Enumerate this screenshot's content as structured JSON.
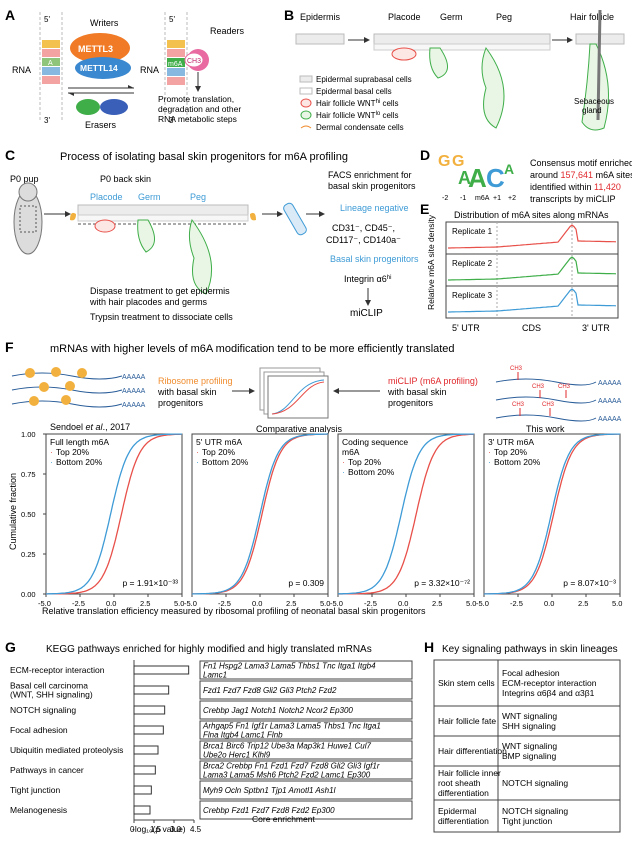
{
  "panels": {
    "A": {
      "letter": "A",
      "rna_left": "RNA",
      "rna_right": "RNA",
      "five_prime": "5'",
      "three_prime": "3'",
      "writers": "Writers",
      "mettl3": "METTL3",
      "mettl14": "METTL14",
      "a_label": "A",
      "m6a_label": "m6A",
      "ch3": "CH3",
      "readers": "Readers",
      "erasers": "Erasers",
      "reader_effect": [
        "Promote translation,",
        "degradation and other",
        "RNA metabolic steps"
      ]
    },
    "B": {
      "letter": "B",
      "stages": [
        "Epidermis",
        "Placode",
        "Germ",
        "Peg",
        "Hair follicle"
      ],
      "sebaceous": [
        "Sebaceous",
        "gland"
      ],
      "legend": [
        "Epidermal suprabasal cells",
        "Epidermal basal cells",
        "Hair follicle WNT^hi cells",
        "Hair follicle WNT^lo cells",
        "Dermal condensate cells"
      ],
      "legend_rich": [
        {
          "pre": "Epidermal suprabasal cells",
          "sup": ""
        },
        {
          "pre": "Epidermal basal cells",
          "sup": ""
        },
        {
          "pre": "Hair follicle WNT",
          "sup": "hi",
          "post": " cells"
        },
        {
          "pre": "Hair follicle WNT",
          "sup": "lo",
          "post": " cells"
        },
        {
          "pre": "Dermal condensate cells",
          "sup": ""
        }
      ]
    },
    "C": {
      "letter": "C",
      "title": "Process of isolating basal skin progenitors for m6A profiling",
      "p0_pup": "P0 pup",
      "p0_back": "P0 back skin",
      "stages": [
        "Placode",
        "Germ",
        "Peg"
      ],
      "facs": [
        "FACS enrichment for",
        "basal skin progenitors"
      ],
      "lineage_negative": "Lineage negative",
      "markers1": "CD31⁻, CD45⁻,",
      "markers2": "CD117⁻, CD140a⁻",
      "basal": "Basal skin progenitors",
      "integrin": "Integrin α6",
      "integrin_sup": "hi",
      "miclip": "miCLIP",
      "steps": [
        "Dispase treatment to get epidermis",
        "with hair placodes and germs",
        "Trypsin treatment to dissociate cells"
      ]
    },
    "D": {
      "letter": "D",
      "positions": [
        "-2",
        "-1",
        "m6A",
        "+1",
        "+2"
      ],
      "text": [
        {
          "pre": "Consensus motif enriched",
          "hl": "",
          "post": ""
        },
        {
          "pre": "around ",
          "hl": "157,641",
          "post": " m6A sites"
        },
        {
          "pre": "identified within ",
          "hl": "11,420",
          "post": ""
        },
        {
          "pre": "transcripts by miCLIP",
          "hl": "",
          "post": ""
        }
      ]
    },
    "E": {
      "letter": "E",
      "title": "Distribution of m6A sites along mRNAs",
      "ylabel": "Relative m6A site density",
      "replicates": [
        "Replicate 1",
        "Replicate 2",
        "Replicate 3"
      ],
      "regions": [
        "5' UTR",
        "CDS",
        "3' UTR"
      ]
    },
    "F": {
      "letter": "F",
      "title": "mRNAs with higher levels of m6A modification tend to be more efficiently translated",
      "aaaaa": "AAAAA",
      "ribo1": "Ribosome profiling",
      "ribo2": [
        "with basal skin",
        "progenitors"
      ],
      "miclip1": "miCLIP (m6A profiling)",
      "miclip2": [
        "with basal skin",
        "progenitors"
      ],
      "sendoel": "Sendoel",
      "sendoel_etal": "et al",
      "sendoel_year": "., 2017",
      "comparative": "Comparative analysis",
      "this_work": "This work",
      "ch3": "CH3",
      "ylabel": "Cumulative fraction",
      "xlabel": "Relative translation efficiency measured by ribosomal profiling of neonatal basal skin progenitors",
      "top": "Top 20%",
      "bottom": "Bottom 20%"
    },
    "G": {
      "letter": "G",
      "title": "KEGG pathways enriched for highly modified and higly translated mRNAs",
      "xlabel": "-log₁₀(p value)",
      "core": "Core enrichment",
      "ticks": [
        "0",
        "1.5",
        "3.0",
        "4.5"
      ],
      "pathways": [
        {
          "name": [
            "ECM-receptor interaction"
          ],
          "genes": [
            "Fn1 Hspg2 Lama3 Lama5 Thbs1 Tnc Itga1 Itgb4",
            "Lamc1"
          ]
        },
        {
          "name": [
            "Basal cell carcinoma",
            "(WNT, SHH signaling)"
          ],
          "genes": [
            "Fzd1 Fzd7 Fzd8 Gli2 Gli3 Ptch2 Fzd2"
          ]
        },
        {
          "name": [
            "NOTCH signaling"
          ],
          "genes": [
            "Crebbp Jag1 Notch1 Notch2 Ncor2 Ep300"
          ]
        },
        {
          "name": [
            "Focal adhesion"
          ],
          "genes": [
            "Arhgap5 Fn1 Igf1r Lama3 Lama5 Thbs1 Tnc Itga1",
            "Flna Itgb4 Lamc1 Flnb"
          ]
        },
        {
          "name": [
            "Ubiquitin mediated proteolysis"
          ],
          "genes": [
            "Brca1 Birc6 Trip12 Ube3a Map3k1 Huwe1 Cul7",
            "Ube2o Herc1 Klhl9"
          ]
        },
        {
          "name": [
            "Pathways in cancer"
          ],
          "genes": [
            "Brca2 Crebbp Fn1 Fzd1 Fzd7 Fzd8 Gli2 Gli3 Igf1r",
            "Lama3 Lama5 Msh6 Ptch2 Fzd2 Lamc1 Ep300"
          ]
        },
        {
          "name": [
            "Tight junction"
          ],
          "genes": [
            "Myh9 Ocln Sptbn1 Tjp1 Amotl1 Ash1l"
          ]
        },
        {
          "name": [
            "Melanogenesis"
          ],
          "genes": [
            "Crebbp Fzd1 Fzd7 Fzd8 Fzd2 Ep300"
          ]
        }
      ]
    },
    "H": {
      "letter": "H",
      "title": "Key signaling pathways in skin lineages",
      "rows": [
        {
          "lineage": [
            "Skin stem cells"
          ],
          "pathways": [
            "Focal adhesion",
            "ECM-receptor interaction",
            "Integrins α6β4 and α3β1"
          ]
        },
        {
          "lineage": [
            "Hair follicle fate"
          ],
          "pathways": [
            "WNT signaling",
            "SHH signaling"
          ]
        },
        {
          "lineage": [
            "Hair differentiation"
          ],
          "pathways": [
            "WNT signaling",
            "BMP signaling"
          ]
        },
        {
          "lineage": [
            "Hair follicle inner",
            "root sheath",
            "differentiation"
          ],
          "pathways": [
            "NOTCH signaling"
          ]
        },
        {
          "lineage": [
            "Epidermal",
            "differentiation"
          ],
          "pathways": [
            "NOTCH signaling",
            "Tight junction"
          ]
        }
      ]
    }
  },
  "colors": {
    "red": "#e8504a",
    "blue": "#3e9bd6",
    "green": "#3fae49",
    "orange": "#f08c2e",
    "highlight": "#e0282c"
  },
  "chart_data": [
    {
      "type": "bar",
      "title": "KEGG pathways enriched for highly modified and higly translated mRNAs",
      "categories": [
        "ECM-receptor interaction",
        "Basal cell carcinoma (WNT, SHH signaling)",
        "NOTCH signaling",
        "Focal adhesion",
        "Ubiquitin mediated proteolysis",
        "Pathways in cancer",
        "Tight junction",
        "Melanogenesis"
      ],
      "values": [
        4.1,
        2.6,
        2.3,
        2.2,
        1.8,
        1.6,
        1.3,
        1.2
      ],
      "xlabel": "-log10(p value)",
      "xlim": [
        0,
        4.5
      ]
    },
    {
      "type": "line",
      "title": "Full length m6A",
      "series": [
        {
          "name": "Top 20%",
          "shift": 0.55
        },
        {
          "name": "Bottom 20%",
          "shift": -0.25
        }
      ],
      "annotation": "p = 1.91×10⁻³³",
      "xlim": [
        -5,
        5
      ],
      "ylim": [
        0,
        1
      ]
    },
    {
      "type": "line",
      "title": "5' UTR m6A",
      "series": [
        {
          "name": "Top 20%",
          "shift": 0.15
        },
        {
          "name": "Bottom 20%",
          "shift": 0.0
        }
      ],
      "annotation": "p = 0.309",
      "xlim": [
        -5,
        5
      ],
      "ylim": [
        0,
        1
      ]
    },
    {
      "type": "line",
      "title": "Coding sequence m6A",
      "series": [
        {
          "name": "Top 20%",
          "shift": 0.75
        },
        {
          "name": "Bottom 20%",
          "shift": -0.35
        }
      ],
      "annotation": "p = 3.32×10⁻⁷²",
      "xlim": [
        -5,
        5
      ],
      "ylim": [
        0,
        1
      ]
    },
    {
      "type": "line",
      "title": "3' UTR m6A",
      "series": [
        {
          "name": "Top 20%",
          "shift": 0.12
        },
        {
          "name": "Bottom 20%",
          "shift": -0.05
        }
      ],
      "annotation": "p = 8.07×10⁻³",
      "xlim": [
        -5,
        5
      ],
      "ylim": [
        0,
        1
      ]
    }
  ]
}
